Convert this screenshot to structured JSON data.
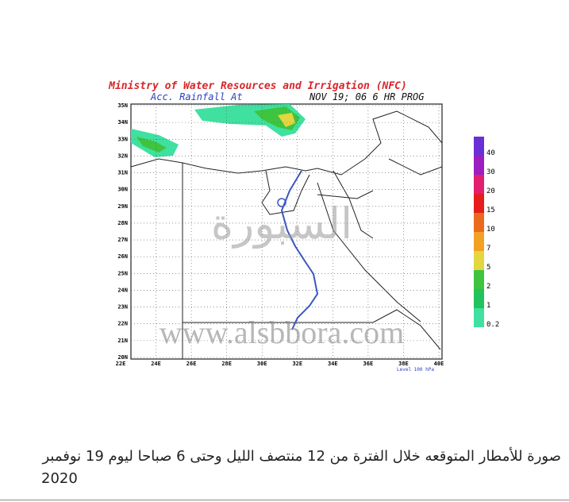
{
  "header": {
    "title": "Ministry of Water Resources and Irrigation (NFC)",
    "subtitle": "Acc. Rainfall  At",
    "time": "NOV 19; 06   6 HR PROG"
  },
  "map": {
    "lat_labels": [
      "35N",
      "34N",
      "33N",
      "32N",
      "31N",
      "30N",
      "29N",
      "28N",
      "27N",
      "26N",
      "25N",
      "24N",
      "23N",
      "22N",
      "21N",
      "20N"
    ],
    "lon_labels": [
      "22E",
      "24E",
      "26E",
      "28E",
      "30E",
      "32E",
      "34E",
      "36E",
      "38E",
      "40E"
    ],
    "level": "Level 100 hPa",
    "watermark_arabic": "السبورة",
    "watermark_url": "www.alsbbora.com"
  },
  "legend": [
    {
      "label": "40",
      "color": "#6a2fd6"
    },
    {
      "label": "30",
      "color": "#9c1ec0"
    },
    {
      "label": "20",
      "color": "#e21f6e"
    },
    {
      "label": "15",
      "color": "#e51d1d"
    },
    {
      "label": "10",
      "color": "#ea6a1e"
    },
    {
      "label": "7",
      "color": "#f2a126"
    },
    {
      "label": "5",
      "color": "#e3d63e"
    },
    {
      "label": "2",
      "color": "#3ec43e"
    },
    {
      "label": "1",
      "color": "#22c25c"
    },
    {
      "label": "0.2",
      "color": "#3fe0a0"
    }
  ],
  "caption": {
    "line1": "صورة للأمطار المتوقعه خلال الفترة من 12 منتصف الليل وحتى 6 صباحا ليوم 19 نوفمبر",
    "line2": "2020"
  }
}
